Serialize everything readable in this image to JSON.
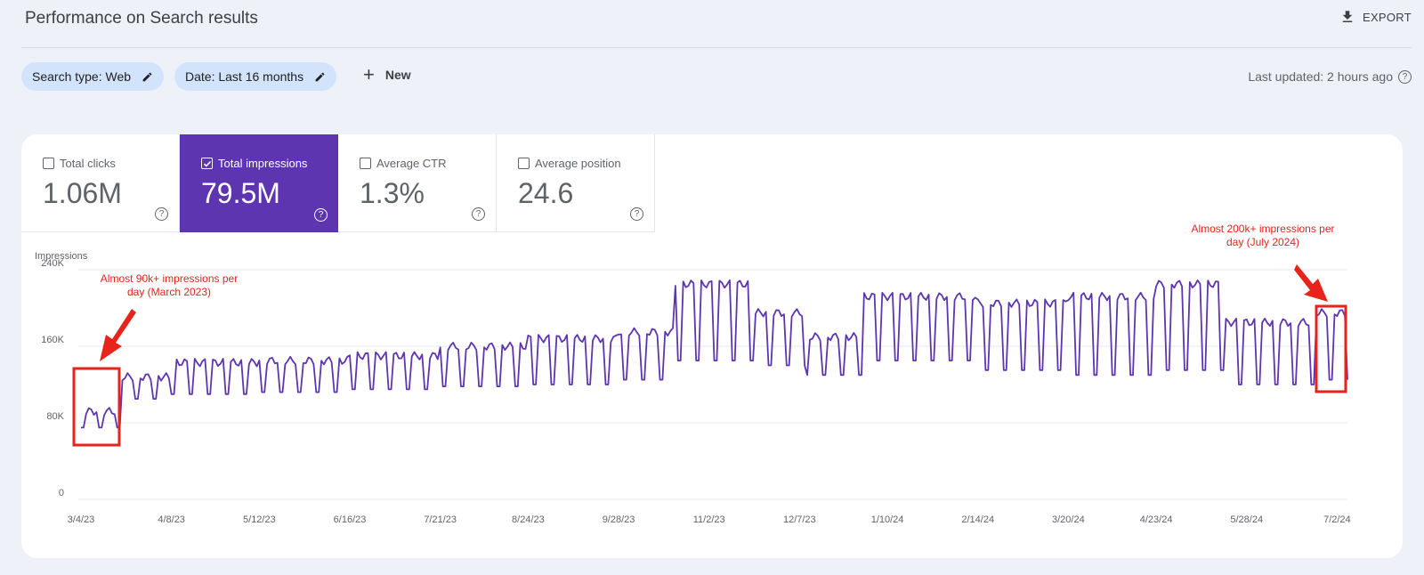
{
  "header": {
    "title": "Performance on Search results",
    "export_label": "EXPORT"
  },
  "filters": {
    "search_type": "Search type: Web",
    "date": "Date: Last 16 months",
    "new_label": "New",
    "last_updated": "Last updated: 2 hours ago"
  },
  "metrics": [
    {
      "label": "Total clicks",
      "value": "1.06M",
      "checked": false
    },
    {
      "label": "Total impressions",
      "value": "79.5M",
      "checked": true
    },
    {
      "label": "Average CTR",
      "value": "1.3%",
      "checked": false
    },
    {
      "label": "Average position",
      "value": "24.6",
      "checked": false
    }
  ],
  "colors": {
    "accent": "#5e35b1",
    "chip": "#d2e3fc",
    "annotation": "#e8231c"
  },
  "chart_data": {
    "type": "line",
    "ylabel": "Impressions",
    "ylim": [
      0,
      240000
    ],
    "yticks": [
      {
        "label": "0",
        "value": 0
      },
      {
        "label": "80K",
        "value": 80000
      },
      {
        "label": "160K",
        "value": 160000
      },
      {
        "label": "240K",
        "value": 240000
      }
    ],
    "x_start": "3/4/23",
    "x_end": "7/6/24",
    "xticks": [
      "3/4/23",
      "4/8/23",
      "5/12/23",
      "6/16/23",
      "7/21/23",
      "8/24/23",
      "9/28/23",
      "11/2/23",
      "12/7/23",
      "1/10/24",
      "2/14/24",
      "3/20/24",
      "4/23/24",
      "5/28/24",
      "7/2/24"
    ],
    "grid": true,
    "series": [
      {
        "color": "#5e35b1",
        "monthly": [
          {
            "from": "3/4/23",
            "weekday": 92000,
            "weekend": 75000
          },
          {
            "from": "3/20/23",
            "weekday": 128000,
            "weekend": 105000
          },
          {
            "from": "4/8/23",
            "weekday": 143000,
            "weekend": 110000
          },
          {
            "from": "5/12/23",
            "weekday": 145000,
            "weekend": 112000
          },
          {
            "from": "6/16/23",
            "weekday": 150000,
            "weekend": 115000
          },
          {
            "from": "7/21/23",
            "weekday": 160000,
            "weekend": 118000
          },
          {
            "from": "8/24/23",
            "weekday": 168000,
            "weekend": 120000
          },
          {
            "from": "9/28/23",
            "weekday": 175000,
            "weekend": 125000
          },
          {
            "from": "10/20/23",
            "weekday": 225000,
            "weekend": 145000
          },
          {
            "from": "11/20/23",
            "weekday": 195000,
            "weekend": 140000
          },
          {
            "from": "12/10/23",
            "weekday": 170000,
            "weekend": 130000
          },
          {
            "from": "1/1/24",
            "weekday": 212000,
            "weekend": 145000
          },
          {
            "from": "2/14/24",
            "weekday": 205000,
            "weekend": 135000
          },
          {
            "from": "3/20/24",
            "weekday": 212000,
            "weekend": 130000
          },
          {
            "from": "4/23/24",
            "weekday": 225000,
            "weekend": 135000
          },
          {
            "from": "5/20/24",
            "weekday": 185000,
            "weekend": 120000
          },
          {
            "from": "6/24/24",
            "weekday": 195000,
            "weekend": 125000
          }
        ]
      }
    ],
    "annotations": [
      {
        "text_lines": [
          "Almost 90k+ impressions per",
          "day (March 2023)"
        ]
      },
      {
        "text_lines": [
          "Almost 200k+ impressions per",
          "day (July 2024)"
        ]
      }
    ]
  }
}
